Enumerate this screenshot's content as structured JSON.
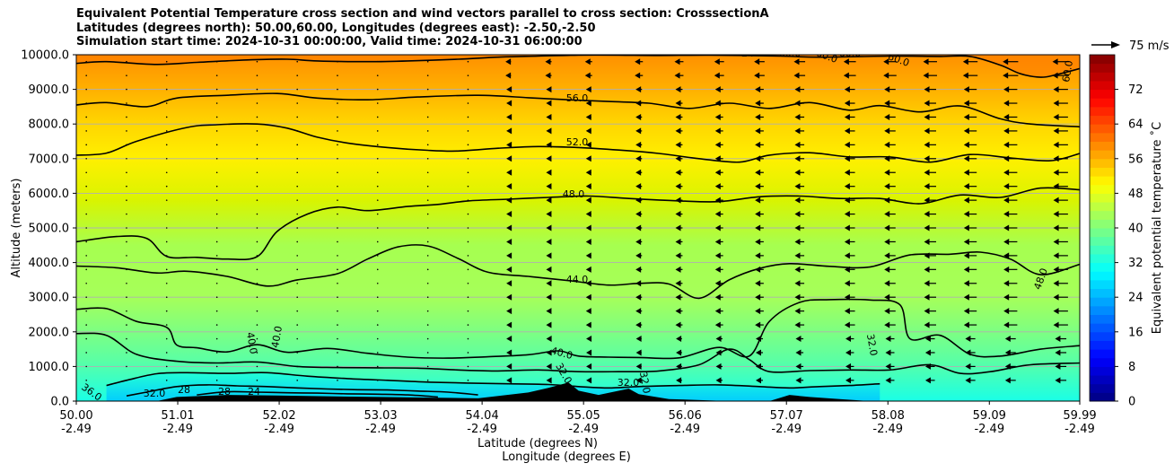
{
  "titles": {
    "line1": "Equivalent Potential Temperature cross section and wind vectors parallel to cross section: CrosssectionA",
    "line2": "Latitudes (degrees north): 50.00,60.00, Longitudes (degrees east): -2.50,-2.50",
    "line3": "Simulation start time: 2024-10-31 00:00:00, Valid time: 2024-10-31 06:00:00"
  },
  "colors": {
    "jet": [
      "#00007f",
      "#0000ff",
      "#007fff",
      "#00ffff",
      "#7fff7f",
      "#ffff00",
      "#ff7f00",
      "#ff0000",
      "#7f0000"
    ],
    "terrain": "#000000",
    "grid": "#b0b0b0"
  },
  "chart_data": {
    "type": "heatmap",
    "subtype": "filled contour cross section with contour lines and wind vectors",
    "xlabel": "Latitude (degrees N)",
    "xlabel2": "Longitude (degrees E)",
    "ylabel": "Altitude (meters)",
    "colorbar_label": "Equivalent potential temperature $^\\circ$C",
    "colorbar_label_text": "Equivalent potential temperature ˚C",
    "quiver_key": "75 m/s",
    "xlim": [
      50.0,
      59.99
    ],
    "ylim": [
      0,
      10000
    ],
    "x_ticks": [
      {
        "lat": "50.00",
        "lon": "-2.49",
        "value": 50.0
      },
      {
        "lat": "51.01",
        "lon": "-2.49",
        "value": 51.01
      },
      {
        "lat": "52.02",
        "lon": "-2.49",
        "value": 52.02
      },
      {
        "lat": "53.03",
        "lon": "-2.49",
        "value": 53.03
      },
      {
        "lat": "54.04",
        "lon": "-2.49",
        "value": 54.04
      },
      {
        "lat": "55.05",
        "lon": "-2.49",
        "value": 55.05
      },
      {
        "lat": "56.06",
        "lon": "-2.49",
        "value": 56.06
      },
      {
        "lat": "57.07",
        "lon": "-2.49",
        "value": 57.07
      },
      {
        "lat": "58.08",
        "lon": "-2.49",
        "value": 58.08
      },
      {
        "lat": "59.09",
        "lon": "-2.49",
        "value": 59.09
      },
      {
        "lat": "59.99",
        "lon": "-2.49",
        "value": 59.99
      }
    ],
    "y_ticks": [
      "0.0",
      "1000.0",
      "2000.0",
      "3000.0",
      "4000.0",
      "5000.0",
      "6000.0",
      "7000.0",
      "8000.0",
      "9000.0",
      "10000.0"
    ],
    "colorbar_range": [
      0,
      80
    ],
    "colorbar_ticks": [
      "0",
      "8",
      "16",
      "24",
      "32",
      "40",
      "48",
      "56",
      "64",
      "72"
    ],
    "grid": "horizontal",
    "contour_labels": [
      "56.0",
      "52.0",
      "48.0",
      "44.0",
      "40.0",
      "40.0",
      "40.0",
      "48.0",
      "36.0",
      "32.0",
      "32.0",
      "32.0",
      "32.0",
      "32.0",
      "28",
      "28",
      "24",
      "24",
      "60.0",
      "60.0",
      "60.0",
      "60.0",
      "60.0"
    ],
    "contours": [
      {
        "level": 60,
        "points": [
          [
            50.0,
            9750
          ],
          [
            50.3,
            9800
          ],
          [
            50.8,
            9720
          ],
          [
            51.2,
            9780
          ],
          [
            51.7,
            9850
          ],
          [
            52.1,
            9870
          ],
          [
            52.4,
            9820
          ],
          [
            52.9,
            9800
          ],
          [
            53.3,
            9820
          ],
          [
            53.8,
            9870
          ],
          [
            54.2,
            9930
          ],
          [
            54.6,
            9960
          ],
          [
            55.0,
            9990
          ],
          [
            55.4,
            9990
          ],
          [
            55.8,
            9980
          ],
          [
            56.3,
            9990
          ],
          [
            57.0,
            9960
          ],
          [
            57.4,
            9930
          ],
          [
            58.1,
            9960
          ],
          [
            58.6,
            9950
          ],
          [
            58.9,
            9950
          ],
          [
            59.2,
            9700
          ],
          [
            59.4,
            9450
          ],
          [
            59.6,
            9350
          ],
          [
            59.75,
            9420
          ],
          [
            59.99,
            9600
          ]
        ]
      },
      {
        "level": 56,
        "points": [
          [
            50.0,
            8550
          ],
          [
            50.3,
            8620
          ],
          [
            50.7,
            8500
          ],
          [
            51.0,
            8750
          ],
          [
            51.5,
            8830
          ],
          [
            52.0,
            8880
          ],
          [
            52.4,
            8750
          ],
          [
            52.9,
            8700
          ],
          [
            53.4,
            8780
          ],
          [
            54.0,
            8830
          ],
          [
            54.5,
            8760
          ],
          [
            54.9,
            8700
          ],
          [
            55.3,
            8650
          ],
          [
            55.7,
            8600
          ],
          [
            56.1,
            8450
          ],
          [
            56.5,
            8600
          ],
          [
            56.9,
            8450
          ],
          [
            57.3,
            8620
          ],
          [
            57.7,
            8400
          ],
          [
            58.0,
            8530
          ],
          [
            58.4,
            8350
          ],
          [
            58.8,
            8520
          ],
          [
            59.2,
            8150
          ],
          [
            59.5,
            8000
          ],
          [
            59.99,
            7920
          ]
        ]
      },
      {
        "level": 52,
        "points": [
          [
            50.0,
            7100
          ],
          [
            50.3,
            7160
          ],
          [
            50.6,
            7500
          ],
          [
            51.1,
            7900
          ],
          [
            51.4,
            7980
          ],
          [
            51.8,
            8000
          ],
          [
            52.1,
            7880
          ],
          [
            52.4,
            7620
          ],
          [
            52.7,
            7450
          ],
          [
            53.1,
            7320
          ],
          [
            53.5,
            7240
          ],
          [
            53.8,
            7220
          ],
          [
            54.2,
            7300
          ],
          [
            54.6,
            7350
          ],
          [
            55.0,
            7320
          ],
          [
            55.4,
            7250
          ],
          [
            55.8,
            7150
          ],
          [
            56.2,
            7000
          ],
          [
            56.6,
            6900
          ],
          [
            56.9,
            7100
          ],
          [
            57.3,
            7170
          ],
          [
            57.7,
            7050
          ],
          [
            58.1,
            7050
          ],
          [
            58.5,
            6900
          ],
          [
            58.9,
            7120
          ],
          [
            59.3,
            7020
          ],
          [
            59.7,
            6940
          ],
          [
            59.99,
            7150
          ]
        ]
      },
      {
        "level": 48,
        "points": [
          [
            50.0,
            4600
          ],
          [
            50.4,
            4750
          ],
          [
            50.7,
            4700
          ],
          [
            50.9,
            4180
          ],
          [
            51.2,
            4150
          ],
          [
            51.5,
            4100
          ],
          [
            51.8,
            4170
          ],
          [
            52.0,
            4900
          ],
          [
            52.3,
            5400
          ],
          [
            52.6,
            5600
          ],
          [
            52.9,
            5500
          ],
          [
            53.3,
            5620
          ],
          [
            53.6,
            5680
          ],
          [
            53.9,
            5780
          ],
          [
            54.3,
            5830
          ],
          [
            54.7,
            5880
          ],
          [
            55.1,
            5920
          ],
          [
            55.5,
            5850
          ],
          [
            56.0,
            5780
          ],
          [
            56.4,
            5760
          ],
          [
            56.8,
            5900
          ],
          [
            57.2,
            5920
          ],
          [
            57.6,
            5850
          ],
          [
            58.0,
            5850
          ],
          [
            58.4,
            5700
          ],
          [
            58.8,
            5950
          ],
          [
            59.2,
            5880
          ],
          [
            59.6,
            6150
          ],
          [
            59.99,
            6100
          ]
        ]
      },
      {
        "level": 44,
        "points": [
          [
            50.0,
            3900
          ],
          [
            50.4,
            3850
          ],
          [
            50.8,
            3700
          ],
          [
            51.1,
            3750
          ],
          [
            51.5,
            3600
          ],
          [
            51.9,
            3320
          ],
          [
            52.2,
            3500
          ],
          [
            52.6,
            3680
          ],
          [
            52.9,
            4100
          ],
          [
            53.2,
            4450
          ],
          [
            53.5,
            4480
          ],
          [
            53.8,
            4120
          ],
          [
            54.1,
            3720
          ],
          [
            54.5,
            3600
          ],
          [
            54.9,
            3480
          ],
          [
            55.3,
            3350
          ],
          [
            55.6,
            3400
          ],
          [
            55.9,
            3380
          ],
          [
            56.2,
            2970
          ],
          [
            56.5,
            3500
          ],
          [
            56.8,
            3830
          ],
          [
            57.1,
            3970
          ],
          [
            57.5,
            3890
          ],
          [
            57.9,
            3870
          ],
          [
            58.3,
            4220
          ],
          [
            58.7,
            4240
          ],
          [
            59.0,
            4300
          ],
          [
            59.3,
            4100
          ],
          [
            59.6,
            3650
          ],
          [
            59.99,
            3950
          ]
        ]
      },
      {
        "level": 40,
        "points": [
          [
            50.0,
            2650
          ],
          [
            50.3,
            2670
          ],
          [
            50.6,
            2300
          ],
          [
            50.9,
            2130
          ],
          [
            51.0,
            1620
          ],
          [
            51.2,
            1540
          ],
          [
            51.5,
            1420
          ],
          [
            51.8,
            1630
          ],
          [
            52.1,
            1410
          ],
          [
            52.5,
            1520
          ],
          [
            52.9,
            1380
          ],
          [
            53.3,
            1270
          ],
          [
            53.7,
            1240
          ],
          [
            54.1,
            1280
          ],
          [
            54.5,
            1340
          ],
          [
            54.8,
            1450
          ],
          [
            55.0,
            1300
          ],
          [
            55.3,
            1270
          ],
          [
            55.6,
            1260
          ],
          [
            56.0,
            1250
          ],
          [
            56.4,
            1550
          ],
          [
            56.7,
            1300
          ],
          [
            56.9,
            2300
          ],
          [
            57.2,
            2850
          ],
          [
            57.5,
            2930
          ],
          [
            57.9,
            2920
          ],
          [
            58.2,
            2780
          ],
          [
            58.3,
            1800
          ],
          [
            58.6,
            1900
          ],
          [
            58.9,
            1350
          ],
          [
            59.2,
            1300
          ],
          [
            59.6,
            1500
          ],
          [
            59.99,
            1600
          ]
        ]
      },
      {
        "level": 36,
        "points": [
          [
            50.0,
            1950
          ],
          [
            50.3,
            1900
          ],
          [
            50.6,
            1350
          ],
          [
            51.0,
            1150
          ],
          [
            51.4,
            1100
          ],
          [
            51.8,
            1130
          ],
          [
            52.2,
            1000
          ],
          [
            52.6,
            970
          ],
          [
            53.0,
            960
          ],
          [
            53.4,
            950
          ],
          [
            53.8,
            900
          ],
          [
            54.2,
            870
          ],
          [
            54.6,
            900
          ],
          [
            55.0,
            850
          ],
          [
            55.4,
            850
          ],
          [
            55.8,
            870
          ],
          [
            56.2,
            1050
          ],
          [
            56.5,
            1500
          ],
          [
            56.7,
            1200
          ],
          [
            56.9,
            850
          ],
          [
            57.3,
            880
          ],
          [
            57.7,
            900
          ],
          [
            58.1,
            900
          ],
          [
            58.5,
            1050
          ],
          [
            58.8,
            800
          ],
          [
            59.1,
            850
          ],
          [
            59.5,
            1050
          ],
          [
            59.99,
            1100
          ]
        ]
      },
      {
        "level": 32,
        "points": [
          [
            50.3,
            450
          ],
          [
            50.5,
            600
          ],
          [
            50.8,
            790
          ],
          [
            51.1,
            820
          ],
          [
            51.5,
            800
          ],
          [
            51.9,
            820
          ],
          [
            52.3,
            720
          ],
          [
            52.7,
            650
          ],
          [
            53.1,
            600
          ],
          [
            53.5,
            550
          ],
          [
            53.9,
            520
          ],
          [
            54.3,
            500
          ],
          [
            54.7,
            480
          ],
          [
            55.0,
            420
          ],
          [
            55.3,
            380
          ],
          [
            55.6,
            420
          ],
          [
            56.0,
            450
          ],
          [
            56.4,
            470
          ],
          [
            56.8,
            420
          ],
          [
            57.1,
            380
          ],
          [
            57.4,
            420
          ],
          [
            57.7,
            450
          ],
          [
            58.0,
            500
          ]
        ]
      },
      {
        "level": 28,
        "points": [
          [
            50.5,
            150
          ],
          [
            50.7,
            260
          ],
          [
            51.0,
            420
          ],
          [
            51.3,
            470
          ],
          [
            51.6,
            440
          ],
          [
            51.9,
            420
          ],
          [
            52.2,
            380
          ],
          [
            52.5,
            350
          ],
          [
            52.8,
            330
          ],
          [
            53.1,
            320
          ],
          [
            53.4,
            290
          ],
          [
            53.7,
            260
          ],
          [
            54.0,
            180
          ]
        ]
      },
      {
        "level": 24,
        "points": [
          [
            51.2,
            180
          ],
          [
            51.5,
            270
          ],
          [
            51.8,
            260
          ],
          [
            52.1,
            240
          ],
          [
            52.4,
            230
          ],
          [
            52.7,
            210
          ],
          [
            53.0,
            200
          ],
          [
            53.3,
            180
          ],
          [
            53.6,
            120
          ]
        ]
      }
    ],
    "terrain_profile": [
      [
        50.0,
        0
      ],
      [
        50.8,
        0
      ],
      [
        51.0,
        120
      ],
      [
        51.5,
        180
      ],
      [
        52.0,
        160
      ],
      [
        52.5,
        140
      ],
      [
        53.0,
        120
      ],
      [
        53.5,
        100
      ],
      [
        54.0,
        80
      ],
      [
        54.5,
        250
      ],
      [
        54.7,
        380
      ],
      [
        54.9,
        540
      ],
      [
        55.0,
        300
      ],
      [
        55.2,
        180
      ],
      [
        55.5,
        360
      ],
      [
        55.6,
        200
      ],
      [
        55.9,
        60
      ],
      [
        56.5,
        0
      ],
      [
        56.9,
        0
      ],
      [
        57.1,
        180
      ],
      [
        57.3,
        120
      ],
      [
        57.6,
        60
      ],
      [
        57.9,
        0
      ],
      [
        59.99,
        0
      ]
    ],
    "wind_arrow_columns": [
      50.1,
      50.5,
      50.9,
      51.4,
      51.8,
      52.2,
      52.6,
      53.0,
      53.5,
      53.9,
      54.3,
      54.7,
      55.1,
      55.6,
      56.0,
      56.4,
      56.8,
      57.2,
      57.7,
      58.1,
      58.5,
      58.9,
      59.3,
      59.8
    ],
    "wind_arrow_rows": [
      600,
      1000,
      1400,
      1800,
      2200,
      2600,
      3000,
      3400,
      3800,
      4200,
      4600,
      5000,
      5400,
      5800,
      6200,
      6600,
      7000,
      7400,
      7800,
      8200,
      8600,
      9000,
      9400,
      9800
    ]
  }
}
